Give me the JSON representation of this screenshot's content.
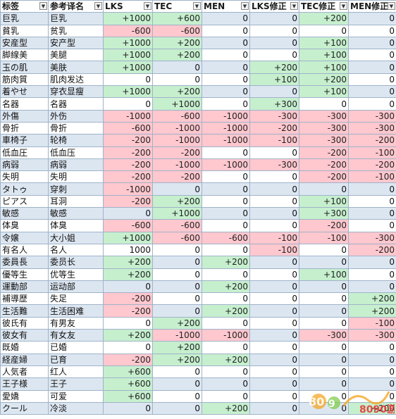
{
  "headers": [
    "标签",
    "参考译名",
    "LKS",
    "TEC",
    "MEN",
    "LKS修正",
    "TEC修正",
    "MEN修正"
  ],
  "filter_icon": "dropdown-filter-icon",
  "colors": {
    "positive": "#c6efce",
    "negative": "#ffc7ce",
    "band": "#dce6f1"
  },
  "rows": [
    [
      "巨乳",
      "巨乳",
      "+1000",
      "+600",
      "0",
      "0",
      "+200",
      "0"
    ],
    [
      "貧乳",
      "贫乳",
      "-600",
      "-600",
      "0",
      "0",
      "0",
      "0"
    ],
    [
      "安産型",
      "安产型",
      "+1000",
      "+200",
      "0",
      "0",
      "+100",
      "0"
    ],
    [
      "脚線美",
      "美腿",
      "+1000",
      "+200",
      "0",
      "0",
      "+100",
      "0"
    ],
    [
      "玉の肌",
      "美肤",
      "+1000",
      "0",
      "0",
      "+200",
      "+100",
      "0"
    ],
    [
      "筋肉質",
      "肌肉发达",
      "0",
      "0",
      "0",
      "+100",
      "+200",
      "0"
    ],
    [
      "着やせ",
      "穿衣显瘦",
      "+1000",
      "+200",
      "0",
      "0",
      "+100",
      "0"
    ],
    [
      "名器",
      "名器",
      "0",
      "+1000",
      "0",
      "+300",
      "0",
      "0"
    ],
    [
      "外傷",
      "外伤",
      "-1000",
      "-600",
      "-1000",
      "-300",
      "-300",
      "-300"
    ],
    [
      "骨折",
      "骨折",
      "-600",
      "-1000",
      "-1000",
      "-200",
      "-300",
      "-300"
    ],
    [
      "車椅子",
      "轮椅",
      "-200",
      "-1000",
      "-1000",
      "-100",
      "-300",
      "-200"
    ],
    [
      "低血圧",
      "低血压",
      "-200",
      "-200",
      "0",
      "0",
      "-200",
      "-100"
    ],
    [
      "病弱",
      "病弱",
      "-200",
      "-1000",
      "-1000",
      "-300",
      "-200",
      "-200"
    ],
    [
      "失明",
      "失明",
      "-200",
      "-200",
      "0",
      "0",
      "-200",
      "-100"
    ],
    [
      "タトゥ",
      "穿刺",
      "-1000",
      "0",
      "0",
      "0",
      "0",
      "0"
    ],
    [
      "ピアス",
      "耳洞",
      "-200",
      "+200",
      "0",
      "0",
      "+100",
      "0"
    ],
    [
      "敏感",
      "敏感",
      "0",
      "+1000",
      "0",
      "0",
      "+300",
      "0"
    ],
    [
      "体臭",
      "体臭",
      "-600",
      "-600",
      "0",
      "0",
      "-200",
      "0"
    ],
    [
      "令嬢",
      "大小姐",
      "+1000",
      "-600",
      "-600",
      "-100",
      "-100",
      "-300"
    ],
    [
      "有名人",
      "名人",
      "1000",
      "0",
      "0",
      "-100",
      "0",
      "-200"
    ],
    [
      "委員長",
      "委员长",
      "+200",
      "0",
      "+200",
      "0",
      "0",
      "0"
    ],
    [
      "優等生",
      "优等生",
      "+200",
      "0",
      "0",
      "0",
      "+100",
      "0"
    ],
    [
      "運動部",
      "运动部",
      "0",
      "0",
      "+200",
      "0",
      "0",
      "0"
    ],
    [
      "補導歴",
      "失足",
      "-200",
      "0",
      "0",
      "0",
      "0",
      "+200"
    ],
    [
      "生活難",
      "生活困难",
      "-200",
      "0",
      "+200",
      "0",
      "0",
      "+200"
    ],
    [
      "彼氏有",
      "有男友",
      "0",
      "+200",
      "0",
      "0",
      "0",
      "-100"
    ],
    [
      "彼女有",
      "有女友",
      "+200",
      "-1000",
      "-1000",
      "0",
      "-300",
      "-300"
    ],
    [
      "既婚",
      "已婚",
      "0",
      "+200",
      "0",
      "0",
      "0",
      "0"
    ],
    [
      "経産婦",
      "已育",
      "-200",
      "+200",
      "+200",
      "0",
      "0",
      "0"
    ],
    [
      "人気者",
      "红人",
      "+600",
      "0",
      "0",
      "0",
      "0",
      "0"
    ],
    [
      "王子様",
      "王子",
      "+600",
      "0",
      "0",
      "0",
      "0",
      "0"
    ],
    [
      "愛嬌",
      "可爱",
      "+600",
      "0",
      "0",
      "0",
      "0",
      "0"
    ],
    [
      "クール",
      "冷淡",
      "0",
      "0",
      "+200",
      "0",
      "0",
      "+200"
    ]
  ],
  "watermark": {
    "text": "8090游戏"
  }
}
